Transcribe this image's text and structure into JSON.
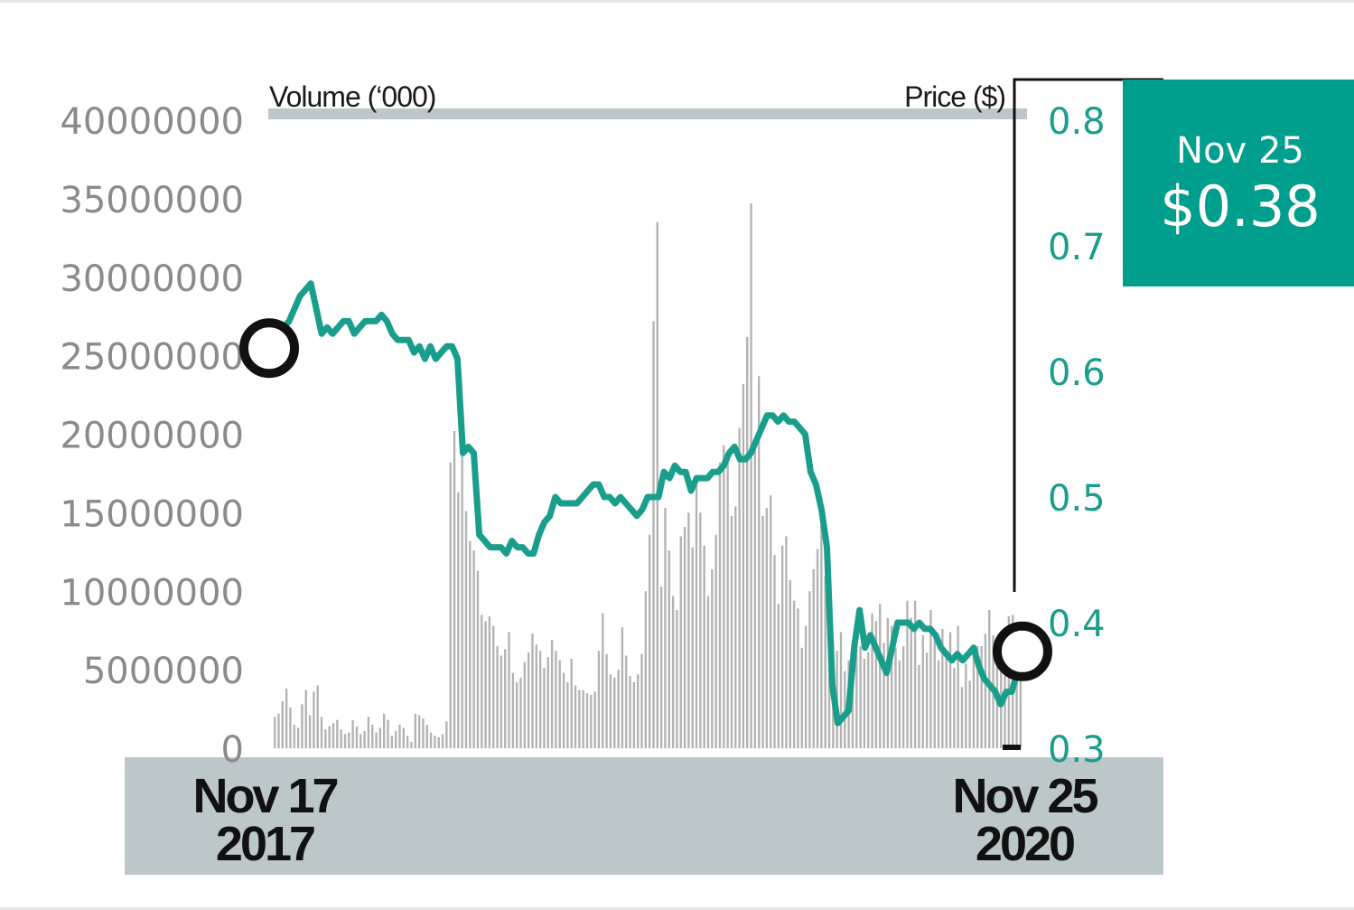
{
  "chart_data": {
    "type": "bar+line",
    "volume_axis": {
      "title": "Volume (‘000)",
      "ticks": [
        "40000000",
        "35000000",
        "30000000",
        "25000000",
        "20000000",
        "15000000",
        "10000000",
        "5000000",
        "0"
      ],
      "range": [
        0,
        40000000
      ]
    },
    "price_axis": {
      "title": "Price ($)",
      "ticks": [
        "0.8",
        "0.7",
        "0.6",
        "0.5",
        "0.4",
        "0.3"
      ],
      "range": [
        0.3,
        0.8
      ]
    },
    "x_labels": {
      "start": [
        "Nov 17",
        "2017"
      ],
      "end": [
        "Nov 25",
        "2020"
      ]
    },
    "callout": {
      "date": "Nov 25",
      "price": "$0.38"
    },
    "colors": {
      "price_line": "#1a9e8c",
      "volume_bars": "#b3b3b3",
      "axis_band": "#bcc7c9",
      "callout_bg": "#009e8c"
    },
    "price": [
      0.62,
      0.63,
      0.635,
      0.64,
      0.65,
      0.66,
      0.665,
      0.67,
      0.65,
      0.63,
      0.635,
      0.63,
      0.635,
      0.64,
      0.64,
      0.63,
      0.635,
      0.64,
      0.64,
      0.64,
      0.645,
      0.64,
      0.63,
      0.625,
      0.625,
      0.625,
      0.615,
      0.62,
      0.61,
      0.62,
      0.61,
      0.615,
      0.62,
      0.62,
      0.61,
      0.535,
      0.54,
      0.535,
      0.47,
      0.465,
      0.46,
      0.46,
      0.46,
      0.455,
      0.465,
      0.46,
      0.46,
      0.455,
      0.455,
      0.47,
      0.48,
      0.485,
      0.5,
      0.495,
      0.495,
      0.495,
      0.495,
      0.5,
      0.505,
      0.51,
      0.51,
      0.5,
      0.5,
      0.495,
      0.5,
      0.495,
      0.49,
      0.485,
      0.49,
      0.5,
      0.5,
      0.5,
      0.52,
      0.515,
      0.525,
      0.52,
      0.52,
      0.505,
      0.515,
      0.515,
      0.515,
      0.52,
      0.52,
      0.525,
      0.535,
      0.54,
      0.53,
      0.53,
      0.535,
      0.545,
      0.555,
      0.565,
      0.565,
      0.56,
      0.565,
      0.56,
      0.56,
      0.555,
      0.55,
      0.52,
      0.51,
      0.49,
      0.46,
      0.35,
      0.32,
      0.325,
      0.33,
      0.38,
      0.41,
      0.38,
      0.39,
      0.38,
      0.37,
      0.36,
      0.38,
      0.4,
      0.4,
      0.4,
      0.395,
      0.4,
      0.395,
      0.395,
      0.39,
      0.38,
      0.375,
      0.37,
      0.375,
      0.37,
      0.375,
      0.38,
      0.365,
      0.355,
      0.35,
      0.345,
      0.335,
      0.345,
      0.345,
      0.36,
      0.38
    ],
    "volume": [
      2000000,
      2200000,
      3000000,
      3800000,
      2600000,
      1500000,
      1300000,
      2800000,
      3700000,
      2100000,
      3600000,
      4000000,
      2000000,
      1200000,
      1400000,
      1600000,
      1800000,
      1200000,
      900000,
      1000000,
      1800000,
      1400000,
      900000,
      1100000,
      2000000,
      1500000,
      1000000,
      1300000,
      2200000,
      1800000,
      800000,
      1100000,
      1500000,
      1300000,
      800000,
      400000,
      2200000,
      2100000,
      1900000,
      1500000,
      1000000,
      800000,
      700000,
      900000,
      1700000,
      18200000,
      20200000,
      16300000,
      21500000,
      15100000,
      13200000,
      12600000,
      11300000,
      8500000,
      8100000,
      8400000,
      7800000,
      6500000,
      5900000,
      6300000,
      7400000,
      4800000,
      4200000,
      4500000,
      5500000,
      6100000,
      7300000,
      6600000,
      6200000,
      5100000,
      5800000,
      6900000,
      6200000,
      5600000,
      4800000,
      4200000,
      5700000,
      4000000,
      3700000,
      3700000,
      3500000,
      3400000,
      3600000,
      6200000,
      8600000,
      6000000,
      4700000,
      4500000,
      5000000,
      7700000,
      5900000,
      4600000,
      4200000,
      4700000,
      6000000,
      10000000,
      13600000,
      27200000,
      33500000,
      10300000,
      15300000,
      12600000,
      9700000,
      8800000,
      13500000,
      14100000,
      15000000,
      12800000,
      16800000,
      15000000,
      12900000,
      9700000,
      11400000,
      13600000,
      18200000,
      19300000,
      18800000,
      14800000,
      15400000,
      20400000,
      23200000,
      26200000,
      34700000,
      19700000,
      23700000,
      14800000,
      15300000,
      16100000,
      12300000,
      9200000,
      12900000,
      13500000,
      10700000,
      9400000,
      8900000,
      6400000,
      7800000,
      10000000,
      11400000,
      12700000,
      14200000,
      11000000,
      8800000,
      6800000,
      6200000,
      7400000,
      4900000,
      5600000,
      5900000,
      7200000,
      6500000,
      5700000,
      6100000,
      8600000,
      8100000,
      9200000,
      6700000,
      8300000,
      7800000,
      6400000,
      5600000,
      6500000,
      9400000,
      8300000,
      9400000,
      5300000,
      7200000,
      6100000,
      8800000,
      7500000,
      5600000,
      7600000,
      6000000,
      7400000,
      5100000,
      7800000,
      3900000,
      5400000,
      4300000,
      6100000,
      6500000,
      6500000,
      7300000,
      8800000,
      7200000,
      5800000,
      6900000,
      7000000,
      8400000,
      8500000,
      7700000,
      8000000
    ]
  }
}
